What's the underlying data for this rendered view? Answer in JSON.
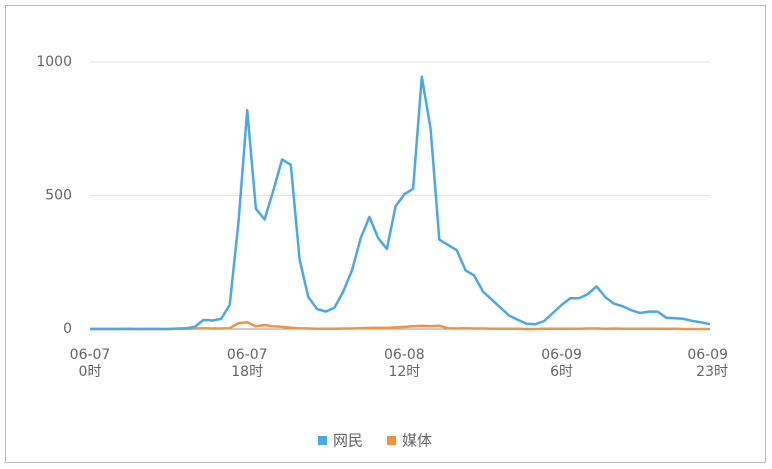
{
  "chart_data": {
    "type": "line",
    "categories": [
      [
        "06-07",
        "0时"
      ],
      null,
      null,
      null,
      null,
      null,
      null,
      null,
      null,
      null,
      null,
      null,
      null,
      null,
      null,
      null,
      null,
      null,
      [
        "06-07",
        "18时"
      ],
      null,
      null,
      null,
      null,
      null,
      null,
      null,
      null,
      null,
      null,
      null,
      null,
      null,
      null,
      null,
      null,
      null,
      [
        "06-08",
        "12时"
      ],
      null,
      null,
      null,
      null,
      null,
      null,
      null,
      null,
      null,
      null,
      null,
      null,
      null,
      null,
      null,
      null,
      null,
      [
        "06-09",
        "6时"
      ],
      null,
      null,
      null,
      null,
      null,
      null,
      null,
      null,
      null,
      null,
      null,
      null,
      null,
      null,
      null,
      null,
      [
        "06-09",
        "23时"
      ]
    ],
    "series": [
      {
        "name": "网民",
        "color": "#4aa8e8",
        "values": [
          0,
          0,
          0,
          0,
          0,
          0,
          0,
          0,
          0,
          0,
          2,
          3,
          8,
          34,
          32,
          38,
          90,
          400,
          820,
          450,
          410,
          520,
          635,
          615,
          260,
          120,
          75,
          65,
          80,
          140,
          220,
          340,
          420,
          340,
          300,
          460,
          505,
          525,
          945,
          750,
          335,
          315,
          295,
          220,
          200,
          140,
          110,
          80,
          50,
          35,
          20,
          18,
          30,
          60,
          90,
          115,
          115,
          130,
          160,
          120,
          95,
          85,
          70,
          60,
          65,
          65,
          42,
          40,
          38,
          30,
          25,
          18
        ]
      },
      {
        "name": "媒体",
        "color": "#f5923e",
        "values": [
          0,
          0,
          0,
          0,
          1,
          0,
          0,
          0,
          0,
          0,
          1,
          1,
          2,
          3,
          2,
          2,
          3,
          22,
          25,
          10,
          15,
          10,
          8,
          5,
          3,
          2,
          1,
          1,
          1,
          2,
          2,
          3,
          4,
          5,
          4,
          6,
          8,
          10,
          12,
          10,
          12,
          3,
          2,
          3,
          2,
          2,
          1,
          1,
          1,
          1,
          0,
          0,
          1,
          1,
          1,
          1,
          1,
          2,
          2,
          1,
          2,
          1,
          1,
          1,
          1,
          1,
          1,
          1,
          0,
          0,
          0,
          0
        ]
      }
    ],
    "ylim": [
      0,
      1000
    ],
    "yticks": [
      0,
      500,
      1000
    ],
    "grid": true,
    "legend": "bottom"
  }
}
